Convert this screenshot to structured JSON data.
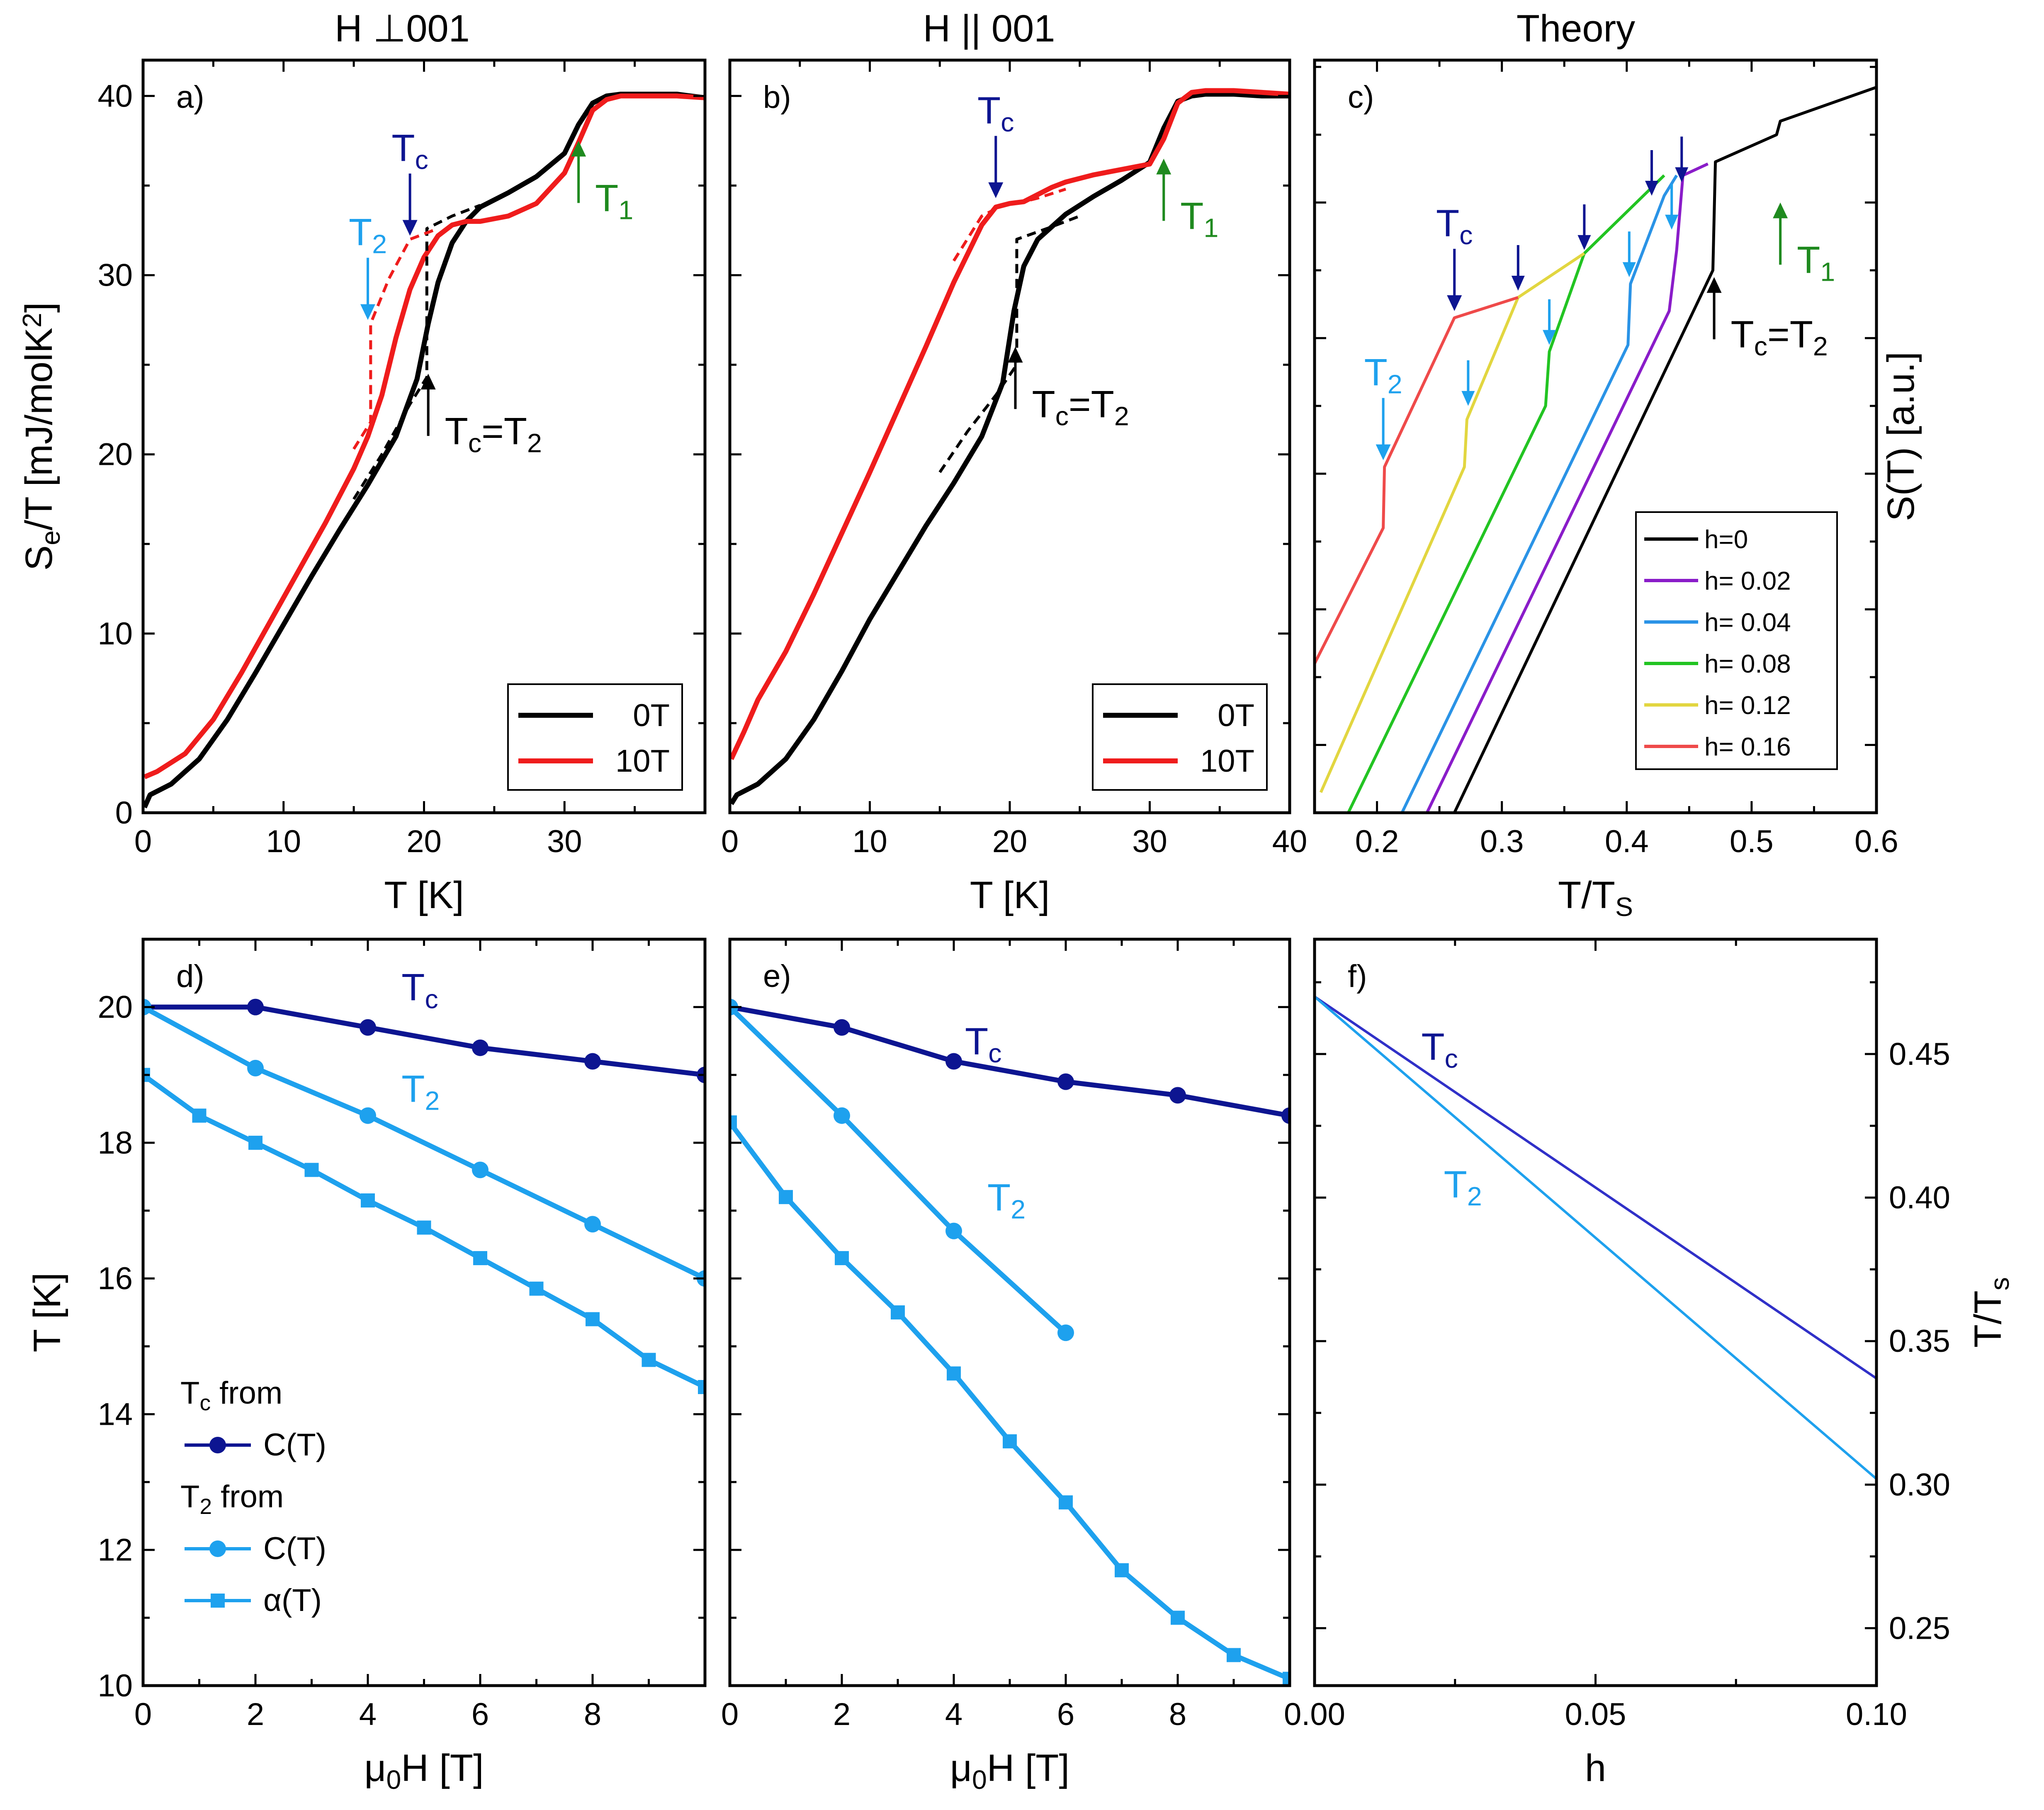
{
  "colors": {
    "black": "#000000",
    "red": "#ef1c1c",
    "navy": "#0d1591",
    "light_blue": "#1ea1ee",
    "green": "#1f8a1f",
    "purple": "#8a1cc9",
    "mid_blue": "#2a93e6",
    "bright_green": "#22c422",
    "yellow": "#e2d640",
    "coral": "#ef4a4a",
    "royal": "#3030c8"
  },
  "chart_data": [
    {
      "id": "a",
      "type": "line",
      "panel_label": "a)",
      "title": "H ⊥001",
      "xlabel": "T [K]",
      "ylabel": "Se/T [mJ/molK2]",
      "xlim": [
        0,
        40
      ],
      "ylim": [
        0,
        42
      ],
      "xticks": [
        0,
        10,
        20,
        30
      ],
      "yticks": [
        0,
        10,
        20,
        30,
        40
      ],
      "legend": [
        {
          "label": "0T",
          "color": "black"
        },
        {
          "label": "10T",
          "color": "red"
        }
      ],
      "series": [
        {
          "name": "0T",
          "color": "black",
          "x": [
            0.1,
            0.5,
            2,
            4,
            6,
            8,
            10,
            12,
            14,
            16,
            18,
            19.5,
            20.3,
            21,
            22,
            23,
            24,
            26,
            28,
            30,
            31,
            32,
            33,
            34,
            35,
            36,
            38,
            40
          ],
          "y": [
            0.3,
            1.0,
            1.6,
            3.0,
            5.2,
            7.8,
            10.5,
            13.2,
            15.8,
            18.3,
            21.0,
            24.2,
            27.3,
            29.6,
            31.8,
            33.0,
            33.8,
            34.6,
            35.5,
            36.8,
            38.4,
            39.6,
            40.0,
            40.1,
            40.1,
            40.1,
            40.1,
            39.9
          ]
        },
        {
          "name": "10T",
          "color": "red",
          "x": [
            0.1,
            1,
            3,
            5,
            7,
            9,
            11,
            13,
            15,
            16,
            17,
            18,
            19,
            20,
            21,
            22,
            23,
            24,
            26,
            28,
            30,
            31,
            32,
            33,
            34,
            35,
            36,
            38,
            40
          ],
          "y": [
            2.0,
            2.3,
            3.3,
            5.2,
            7.8,
            10.6,
            13.4,
            16.2,
            19.2,
            21.0,
            23.3,
            26.5,
            29.2,
            31.0,
            32.2,
            32.8,
            33.0,
            33.0,
            33.3,
            34.0,
            35.7,
            37.4,
            39.2,
            39.8,
            40.0,
            40.0,
            40.0,
            40.0,
            39.9
          ]
        },
        {
          "name": "0T dashed",
          "color": "black",
          "dashed": true,
          "x": [
            15,
            17,
            19,
            20.2,
            20.2,
            22,
            24
          ],
          "y": [
            17.5,
            20.0,
            22.8,
            24.3,
            32.6,
            33.3,
            33.9
          ]
        },
        {
          "name": "10T dashed",
          "color": "red",
          "dashed": true,
          "x": [
            15,
            16.2,
            16.2,
            17.5,
            19,
            21
          ],
          "y": [
            20.3,
            21.8,
            27.3,
            29.8,
            32.0,
            32.6
          ]
        }
      ],
      "annotations": [
        {
          "text": "T2",
          "color": "light_blue",
          "arrow": "down",
          "at": [
            16.0,
            27.5
          ]
        },
        {
          "text": "Tc",
          "color": "navy",
          "arrow": "down",
          "at": [
            19.0,
            32.2
          ]
        },
        {
          "text": "Tc=T2",
          "color": "black",
          "arrow": "up",
          "at": [
            20.3,
            24.5
          ]
        },
        {
          "text": "T1",
          "color": "green",
          "arrow": "up",
          "at": [
            31.0,
            37.5
          ]
        }
      ]
    },
    {
      "id": "b",
      "type": "line",
      "panel_label": "b)",
      "title": "H || 001",
      "xlabel": "T [K]",
      "ylabel": "",
      "xlim": [
        0,
        40
      ],
      "ylim": [
        0,
        42
      ],
      "xticks": [
        0,
        10,
        20,
        30,
        40
      ],
      "yticks": [
        0,
        10,
        20,
        30,
        40
      ],
      "legend": [
        {
          "label": "0T",
          "color": "black"
        },
        {
          "label": "10T",
          "color": "red"
        }
      ],
      "series": [
        {
          "name": "0T",
          "color": "black",
          "x": [
            0.1,
            0.5,
            2,
            4,
            6,
            8,
            10,
            12,
            14,
            16,
            18,
            19.5,
            20.3,
            21,
            22,
            23,
            24,
            26,
            28,
            30,
            31,
            32,
            33,
            34,
            35,
            36,
            38,
            40
          ],
          "y": [
            0.5,
            1.0,
            1.6,
            3.0,
            5.2,
            7.9,
            10.8,
            13.4,
            16.0,
            18.4,
            21.0,
            24.0,
            28.0,
            30.5,
            32.0,
            32.7,
            33.4,
            34.4,
            35.3,
            36.3,
            38.2,
            39.7,
            40.0,
            40.1,
            40.1,
            40.1,
            40.0,
            40.0
          ]
        },
        {
          "name": "10T",
          "color": "red",
          "x": [
            0.1,
            1,
            2,
            4,
            6,
            8,
            10,
            12,
            14,
            16,
            18,
            19,
            20,
            21,
            22,
            23,
            24,
            26,
            28,
            30,
            31,
            32,
            33,
            34,
            35,
            36,
            38,
            40
          ],
          "y": [
            3.0,
            4.5,
            6.3,
            9.0,
            12.2,
            15.6,
            19.0,
            22.5,
            26.0,
            29.6,
            32.8,
            33.8,
            34.0,
            34.1,
            34.5,
            34.9,
            35.2,
            35.6,
            35.9,
            36.2,
            37.6,
            39.6,
            40.2,
            40.3,
            40.3,
            40.3,
            40.2,
            40.1
          ]
        },
        {
          "name": "0T dashed",
          "color": "black",
          "dashed": true,
          "x": [
            15,
            17,
            19,
            20.5,
            20.5,
            23,
            25
          ],
          "y": [
            19.0,
            21.3,
            23.3,
            25.0,
            32.0,
            32.7,
            33.3
          ]
        },
        {
          "name": "10T dashed",
          "color": "red",
          "dashed": true,
          "x": [
            16,
            18,
            19.5,
            20.5,
            22,
            24
          ],
          "y": [
            30.8,
            33.3,
            33.9,
            34.0,
            34.3,
            34.8
          ]
        }
      ],
      "annotations": [
        {
          "text": "Tc",
          "color": "navy",
          "arrow": "down",
          "at": [
            19.0,
            34.3
          ]
        },
        {
          "text": "Tc=T2",
          "color": "black",
          "arrow": "up",
          "at": [
            20.4,
            26.0
          ]
        },
        {
          "text": "T1",
          "color": "green",
          "arrow": "up",
          "at": [
            31.0,
            36.5
          ]
        }
      ]
    },
    {
      "id": "c",
      "type": "line",
      "panel_label": "c)",
      "title": "Theory",
      "xlabel": "T/TS",
      "ylabel": "S(T) [a.u.]",
      "xlim": [
        0.15,
        0.6
      ],
      "ylim": [
        0,
        1.11
      ],
      "xticks": [
        0.2,
        0.3,
        0.4,
        0.5,
        0.6
      ],
      "xtick_labels": [
        "0.2",
        "0.3",
        "0.4",
        "0.5",
        "0.6"
      ],
      "yticks": [
        0.1,
        0.3,
        0.5,
        0.7,
        0.9
      ],
      "legend": [
        {
          "label": "h=0",
          "color": "black"
        },
        {
          "label": "h= 0.02",
          "color": "purple"
        },
        {
          "label": "h= 0.04",
          "color": "mid_blue"
        },
        {
          "label": "h= 0.08",
          "color": "bright_green"
        },
        {
          "label": "h= 0.12",
          "color": "yellow"
        },
        {
          "label": "h= 0.16",
          "color": "coral"
        }
      ],
      "series": [
        {
          "name": "h=0",
          "color": "black",
          "x": [
            0.262,
            0.469,
            0.471,
            0.52,
            0.523,
            0.6
          ],
          "y": [
            0.0,
            0.8,
            0.96,
            1.0,
            1.02,
            1.07
          ]
        },
        {
          "name": "h= 0.02",
          "color": "purple",
          "x": [
            0.24,
            0.434,
            0.44,
            0.445,
            0.465
          ],
          "y": [
            0.0,
            0.74,
            0.83,
            0.94,
            0.957
          ]
        },
        {
          "name": "h= 0.04",
          "color": "mid_blue",
          "x": [
            0.22,
            0.401,
            0.403,
            0.43,
            0.44
          ],
          "y": [
            0.0,
            0.69,
            0.78,
            0.91,
            0.94
          ]
        },
        {
          "name": "h= 0.08",
          "color": "bright_green",
          "x": [
            0.177,
            0.335,
            0.338,
            0.366,
            0.43
          ],
          "y": [
            0.0,
            0.6,
            0.68,
            0.825,
            0.94
          ]
        },
        {
          "name": "h= 0.12",
          "color": "yellow",
          "x": [
            0.155,
            0.27,
            0.272,
            0.313,
            0.366
          ],
          "y": [
            0.03,
            0.51,
            0.58,
            0.76,
            0.825
          ]
        },
        {
          "name": "h= 0.16",
          "color": "coral",
          "x": [
            0.15,
            0.205,
            0.206,
            0.262,
            0.313
          ],
          "y": [
            0.22,
            0.42,
            0.51,
            0.73,
            0.76
          ]
        }
      ],
      "annotations": [
        {
          "text": "Tc",
          "color": "navy",
          "arrow": "down",
          "at": [
            0.262,
            0.74
          ]
        },
        {
          "text": "T2",
          "color": "light_blue",
          "arrow": "down",
          "at": [
            0.205,
            0.52
          ]
        },
        {
          "text": "Tc=T2",
          "color": "black",
          "arrow": "up",
          "at": [
            0.47,
            0.79
          ]
        },
        {
          "text": "T1",
          "color": "green",
          "arrow": "up",
          "at": [
            0.523,
            0.9
          ]
        }
      ],
      "small_arrows": [
        {
          "color": "navy",
          "at": [
            0.313,
            0.77
          ]
        },
        {
          "color": "navy",
          "at": [
            0.366,
            0.83
          ]
        },
        {
          "color": "navy",
          "at": [
            0.42,
            0.91
          ]
        },
        {
          "color": "navy",
          "at": [
            0.444,
            0.93
          ]
        },
        {
          "color": "light_blue",
          "at": [
            0.273,
            0.6
          ]
        },
        {
          "color": "light_blue",
          "at": [
            0.338,
            0.69
          ]
        },
        {
          "color": "light_blue",
          "at": [
            0.402,
            0.79
          ]
        },
        {
          "color": "light_blue",
          "at": [
            0.436,
            0.86
          ]
        }
      ]
    },
    {
      "id": "d",
      "type": "line",
      "panel_label": "d)",
      "title": "",
      "xlabel": "μ0H [T]",
      "ylabel": "T [K]",
      "xlim": [
        0,
        10
      ],
      "ylim": [
        10,
        21
      ],
      "xticks": [
        0,
        2,
        4,
        6,
        8
      ],
      "yticks": [
        10,
        12,
        14,
        16,
        18,
        20
      ],
      "series": [
        {
          "name": "Tc C(T)",
          "color": "navy",
          "marker": "circle",
          "x": [
            0,
            2,
            4,
            6,
            8,
            10
          ],
          "y": [
            20.0,
            20.0,
            19.7,
            19.4,
            19.2,
            19.0
          ]
        },
        {
          "name": "T2 C(T)",
          "color": "light_blue",
          "marker": "circle",
          "x": [
            0,
            2,
            4,
            6,
            8,
            10
          ],
          "y": [
            20.0,
            19.1,
            18.4,
            17.6,
            16.8,
            16.0
          ]
        },
        {
          "name": "T2 α(T)",
          "color": "light_blue",
          "marker": "square",
          "x": [
            0,
            1,
            2,
            3,
            4,
            5,
            6,
            7,
            8,
            9,
            10
          ],
          "y": [
            19.0,
            18.4,
            18.0,
            17.6,
            17.15,
            16.75,
            16.3,
            15.85,
            15.4,
            14.8,
            14.4
          ]
        }
      ],
      "labels": [
        {
          "text": "Tc",
          "color": "navy",
          "at": [
            4.6,
            20.1
          ]
        },
        {
          "text": "T2",
          "color": "light_blue",
          "at": [
            4.6,
            18.6
          ]
        }
      ],
      "legend": [
        {
          "label": "Tc from",
          "color": "navy",
          "kind": "header"
        },
        {
          "label": "C(T)",
          "color": "navy",
          "kind": "circle"
        },
        {
          "label": "T2 from",
          "color": "light_blue",
          "kind": "header"
        },
        {
          "label": "C(T)",
          "color": "light_blue",
          "kind": "circle"
        },
        {
          "label": "α(T)",
          "color": "light_blue",
          "kind": "square"
        }
      ]
    },
    {
      "id": "e",
      "type": "line",
      "panel_label": "e)",
      "title": "",
      "xlabel": "μ0H [T]",
      "ylabel": "",
      "xlim": [
        0,
        10
      ],
      "ylim": [
        10,
        21
      ],
      "xticks": [
        0,
        2,
        4,
        6,
        8
      ],
      "yticks": [
        10,
        12,
        14,
        16,
        18,
        20
      ],
      "series": [
        {
          "name": "Tc C(T)",
          "color": "navy",
          "marker": "circle",
          "x": [
            0,
            2,
            4,
            6,
            8,
            10
          ],
          "y": [
            20.0,
            19.7,
            19.2,
            18.9,
            18.7,
            18.4
          ]
        },
        {
          "name": "T2 C(T)",
          "color": "light_blue",
          "marker": "circle",
          "x": [
            0,
            2,
            4,
            6
          ],
          "y": [
            20.0,
            18.4,
            16.7,
            15.2
          ]
        },
        {
          "name": "T2 α(T)",
          "color": "light_blue",
          "marker": "square",
          "x": [
            0,
            1,
            2,
            3,
            4,
            5,
            6,
            7,
            8,
            9,
            10
          ],
          "y": [
            18.3,
            17.2,
            16.3,
            15.5,
            14.6,
            13.6,
            12.7,
            11.7,
            11.0,
            10.45,
            10.1
          ]
        }
      ],
      "labels": [
        {
          "text": "Tc",
          "color": "navy",
          "at": [
            4.2,
            19.3
          ]
        },
        {
          "text": "T2",
          "color": "light_blue",
          "at": [
            4.6,
            17.0
          ]
        }
      ]
    },
    {
      "id": "f",
      "type": "line",
      "panel_label": "f)",
      "title": "",
      "xlabel": "h",
      "ylabel": "T/Ts",
      "xlim": [
        0,
        0.1
      ],
      "ylim": [
        0.23,
        0.49
      ],
      "xticks": [
        0,
        0.05,
        0.1
      ],
      "xtick_labels": [
        "0.00",
        "0.05",
        "0.10"
      ],
      "yticks": [
        0.25,
        0.3,
        0.35,
        0.4,
        0.45
      ],
      "ytick_labels": [
        "0.25",
        "0.30",
        "0.35",
        "0.40",
        "0.45"
      ],
      "series": [
        {
          "name": "Tc",
          "color": "royal",
          "x": [
            0,
            0.1
          ],
          "y": [
            0.47,
            0.337
          ]
        },
        {
          "name": "T2",
          "color": "light_blue",
          "x": [
            0,
            0.1
          ],
          "y": [
            0.47,
            0.302
          ]
        }
      ],
      "labels": [
        {
          "text": "Tc",
          "color": "navy",
          "at": [
            0.019,
            0.448
          ]
        },
        {
          "text": "T2",
          "color": "light_blue",
          "at": [
            0.023,
            0.4
          ]
        }
      ]
    }
  ]
}
